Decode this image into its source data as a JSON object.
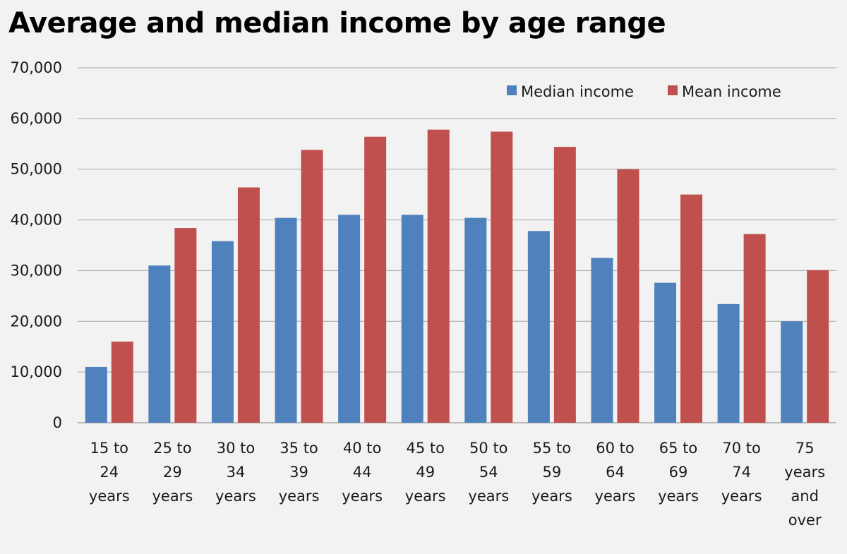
{
  "chart_data": {
    "type": "bar",
    "title": "Average and median income by age range",
    "xlabel": "",
    "ylabel": "",
    "ylim": [
      0,
      70000
    ],
    "yticks": [
      "0",
      "10,000",
      "20,000",
      "30,000",
      "40,000",
      "50,000",
      "60,000",
      "70,000"
    ],
    "ytick_values": [
      0,
      10000,
      20000,
      30000,
      40000,
      50000,
      60000,
      70000
    ],
    "grid": true,
    "legend_position": "top-right",
    "categories": [
      [
        "15 to",
        "24",
        "years"
      ],
      [
        "25 to",
        "29",
        "years"
      ],
      [
        "30 to",
        "34",
        "years"
      ],
      [
        "35 to",
        "39",
        "years"
      ],
      [
        "40 to",
        "44",
        "years"
      ],
      [
        "45 to",
        "49",
        "years"
      ],
      [
        "50 to",
        "54",
        "years"
      ],
      [
        "55 to",
        "59",
        "years"
      ],
      [
        "60 to",
        "64",
        "years"
      ],
      [
        "65 to",
        "69",
        "years"
      ],
      [
        "70 to",
        "74",
        "years"
      ],
      [
        "75",
        "years",
        "and",
        "over"
      ]
    ],
    "series": [
      {
        "name": "Median income",
        "color": "#4f81bd",
        "values": [
          11000,
          31000,
          35800,
          40400,
          41000,
          41000,
          40400,
          37800,
          32500,
          27600,
          23400,
          20000
        ]
      },
      {
        "name": "Mean income",
        "color": "#c0504d",
        "values": [
          16000,
          38400,
          46400,
          53800,
          56400,
          57800,
          57400,
          54400,
          50000,
          45000,
          37200,
          30100
        ]
      }
    ]
  }
}
